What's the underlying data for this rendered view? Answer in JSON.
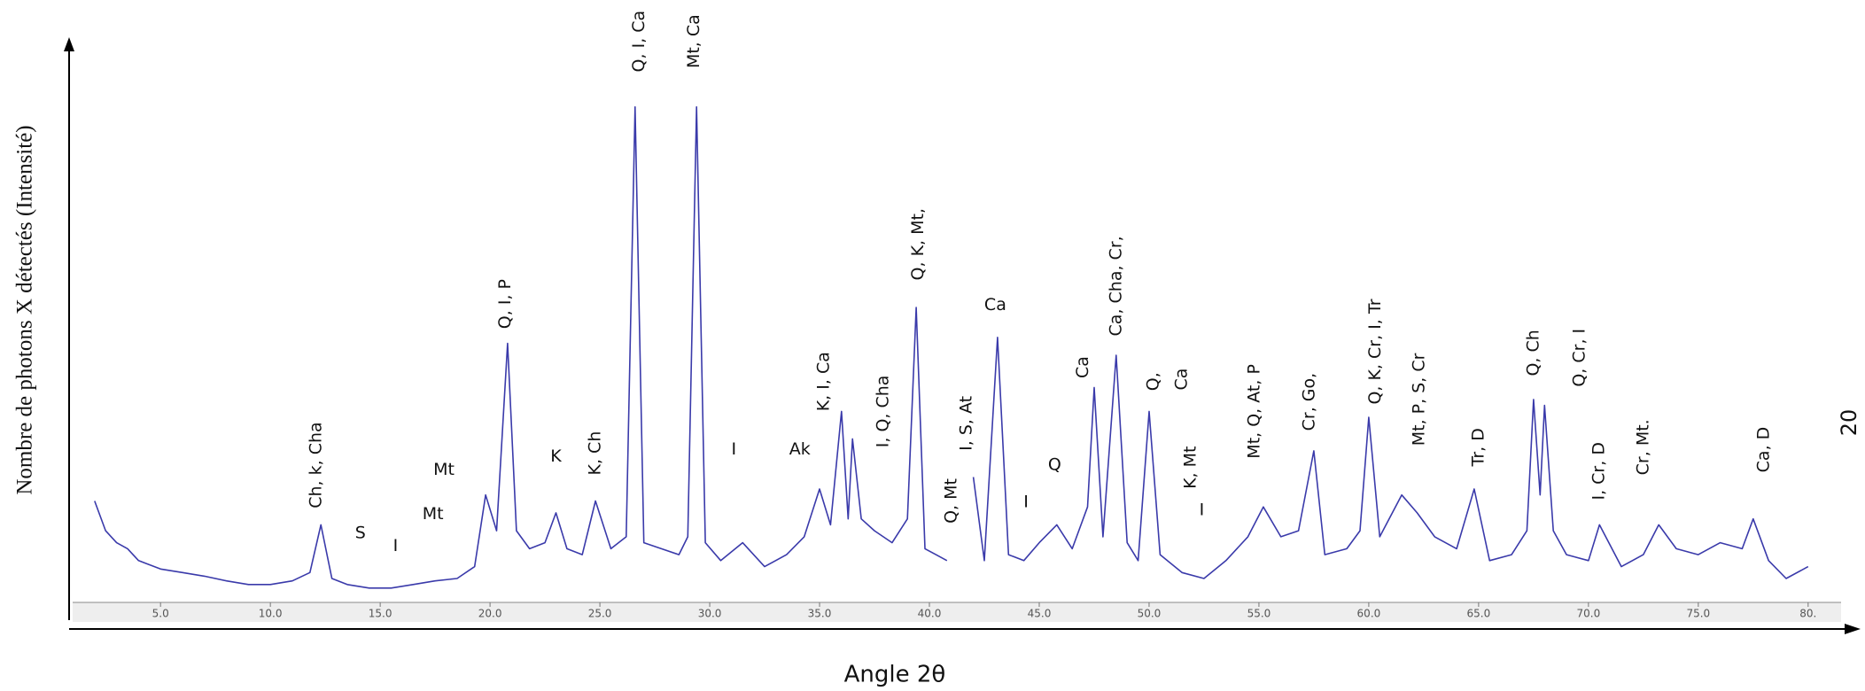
{
  "chart_data": {
    "type": "line",
    "y_label": "Nombre de photons X détectés (Intensité)",
    "x_label": "Angle 2θ",
    "side_label": "20",
    "xlim": [
      1,
      81.5
    ],
    "ylim": [
      0,
      420
    ],
    "xticks": [
      {
        "value": 5,
        "label": "5.0"
      },
      {
        "value": 10,
        "label": "10.0"
      },
      {
        "value": 15,
        "label": "15.0"
      },
      {
        "value": 20,
        "label": "20.0"
      },
      {
        "value": 25,
        "label": "25.0"
      },
      {
        "value": 30,
        "label": "30.0"
      },
      {
        "value": 35,
        "label": "35.0"
      },
      {
        "value": 40,
        "label": "40.0"
      },
      {
        "value": 45,
        "label": "45.0"
      },
      {
        "value": 50,
        "label": "50.0"
      },
      {
        "value": 55,
        "label": "55.0"
      },
      {
        "value": 60,
        "label": "60.0"
      },
      {
        "value": 65,
        "label": "65.0"
      },
      {
        "value": 70,
        "label": "70.0"
      },
      {
        "value": 75,
        "label": "75.0"
      },
      {
        "value": 80,
        "label": "80."
      }
    ],
    "x": [
      2,
      2.5,
      3,
      3.5,
      4,
      5,
      6,
      7,
      8,
      9,
      10,
      11,
      11.8,
      12.3,
      12.8,
      13.5,
      14.5,
      15.5,
      16.5,
      17.5,
      18.5,
      19.3,
      19.8,
      20.3,
      20.8,
      21.2,
      21.8,
      22.5,
      23.0,
      23.5,
      24.2,
      24.8,
      25.5,
      26.2,
      26.6,
      27.0,
      27.8,
      28.6,
      29.0,
      29.4,
      29.8,
      30.5,
      31.5,
      32.5,
      33.5,
      34.3,
      35.0,
      35.5,
      36.0,
      36.3,
      36.5,
      36.9,
      37.5,
      38.3,
      39.0,
      39.4,
      39.8,
      40.3,
      40.8,
      41.5,
      42.0,
      42.5,
      43.1,
      43.6,
      44.3,
      45.0,
      45.8,
      46.5,
      47.2,
      47.5,
      47.9,
      48.5,
      49.0,
      49.5,
      50.0,
      50.5,
      51.5,
      52.5,
      53.5,
      54.5,
      55.2,
      56.0,
      56.8,
      57.5,
      58.0,
      59.0,
      59.6,
      60.0,
      60.5,
      61.5,
      62.2,
      63.0,
      64.0,
      64.8,
      65.5,
      66.5,
      67.2,
      67.5,
      67.8,
      68.0,
      68.4,
      69.0,
      70.0,
      70.5,
      71.5,
      72.5,
      73.2,
      74.0,
      75.0,
      76.0,
      77.0,
      77.5,
      78.2,
      79.0,
      80.0
    ],
    "series": [
      {
        "color": "#3a3aaa",
        "values": [
          85,
          60,
          50,
          45,
          35,
          28,
          25,
          22,
          18,
          15,
          15,
          18,
          25,
          65,
          20,
          15,
          12,
          12,
          15,
          18,
          20,
          30,
          90,
          60,
          217,
          60,
          45,
          50,
          75,
          45,
          40,
          85,
          45,
          55,
          415,
          50,
          45,
          40,
          55,
          415,
          50,
          35,
          50,
          30,
          40,
          55,
          95,
          65,
          160,
          70,
          137,
          70,
          60,
          50,
          70,
          247,
          45,
          40,
          35,
          null,
          105,
          35,
          222,
          40,
          35,
          50,
          65,
          45,
          80,
          180,
          55,
          207,
          50,
          35,
          160,
          40,
          25,
          20,
          35,
          55,
          80,
          55,
          60,
          127,
          40,
          45,
          60,
          155,
          55,
          90,
          75,
          55,
          45,
          95,
          35,
          40,
          60,
          170,
          90,
          165,
          60,
          40,
          35,
          65,
          30,
          40,
          65,
          45,
          40,
          50,
          45,
          70,
          35,
          20,
          30
        ]
      }
    ],
    "annotations": [
      {
        "text": "Ch, k, Cha",
        "x": 12.1,
        "y": 115,
        "rotated": true
      },
      {
        "text": "S",
        "x": 14.1,
        "y": 58,
        "rotated": false
      },
      {
        "text": "I",
        "x": 15.7,
        "y": 47,
        "rotated": false
      },
      {
        "text": "Mt",
        "x": 17.4,
        "y": 74,
        "rotated": false
      },
      {
        "text": "Mt",
        "x": 17.9,
        "y": 111,
        "rotated": false
      },
      {
        "text": "Q, I, P",
        "x": 20.7,
        "y": 250,
        "rotated": true
      },
      {
        "text": "K",
        "x": 23.0,
        "y": 122,
        "rotated": false
      },
      {
        "text": "K, Ch",
        "x": 24.8,
        "y": 125,
        "rotated": true
      },
      {
        "text": "Q, I, Ca",
        "x": 26.8,
        "y": 470,
        "rotated": true
      },
      {
        "text": "Mt, Ca",
        "x": 29.3,
        "y": 470,
        "rotated": true
      },
      {
        "text": "I",
        "x": 31.1,
        "y": 128,
        "rotated": false
      },
      {
        "text": "Ak",
        "x": 34.1,
        "y": 128,
        "rotated": false
      },
      {
        "text": "K, I, Ca",
        "x": 35.2,
        "y": 185,
        "rotated": true
      },
      {
        "text": "I, Q, Cha",
        "x": 37.9,
        "y": 160,
        "rotated": true
      },
      {
        "text": "Q, K, Mt,",
        "x": 39.5,
        "y": 300,
        "rotated": true
      },
      {
        "text": "Q, Mt",
        "x": 41.0,
        "y": 85,
        "rotated": true
      },
      {
        "text": "I, S, At",
        "x": 41.7,
        "y": 150,
        "rotated": true
      },
      {
        "text": "Ca",
        "x": 43.0,
        "y": 249,
        "rotated": false
      },
      {
        "text": "I",
        "x": 44.4,
        "y": 84,
        "rotated": false
      },
      {
        "text": "Q",
        "x": 45.7,
        "y": 115,
        "rotated": false
      },
      {
        "text": "Ca",
        "x": 47.0,
        "y": 197,
        "rotated": true
      },
      {
        "text": "Ca, Cha, Cr,",
        "x": 48.5,
        "y": 265,
        "rotated": true
      },
      {
        "text": "Q,",
        "x": 50.2,
        "y": 185,
        "rotated": true
      },
      {
        "text": "Ca",
        "x": 51.5,
        "y": 187,
        "rotated": true
      },
      {
        "text": "K, Mt",
        "x": 51.9,
        "y": 113,
        "rotated": true
      },
      {
        "text": "I",
        "x": 52.4,
        "y": 77,
        "rotated": false
      },
      {
        "text": "Mt, Q, At, P",
        "x": 54.8,
        "y": 160,
        "rotated": true
      },
      {
        "text": "Cr, Go,",
        "x": 57.3,
        "y": 168,
        "rotated": true
      },
      {
        "text": "Q, K, Cr, I, Tr",
        "x": 60.3,
        "y": 210,
        "rotated": true
      },
      {
        "text": "Mt, P, S, Cr",
        "x": 62.3,
        "y": 170,
        "rotated": true
      },
      {
        "text": "Tr, D",
        "x": 65.0,
        "y": 130,
        "rotated": true
      },
      {
        "text": "Q, Ch",
        "x": 67.5,
        "y": 209,
        "rotated": true
      },
      {
        "text": "Q, Cr, I",
        "x": 69.6,
        "y": 205,
        "rotated": true
      },
      {
        "text": "I, Cr, D",
        "x": 70.5,
        "y": 110,
        "rotated": true
      },
      {
        "text": "Cr, Mt.",
        "x": 72.5,
        "y": 130,
        "rotated": true
      },
      {
        "text": "Ca, D",
        "x": 78.0,
        "y": 128,
        "rotated": true
      }
    ]
  }
}
